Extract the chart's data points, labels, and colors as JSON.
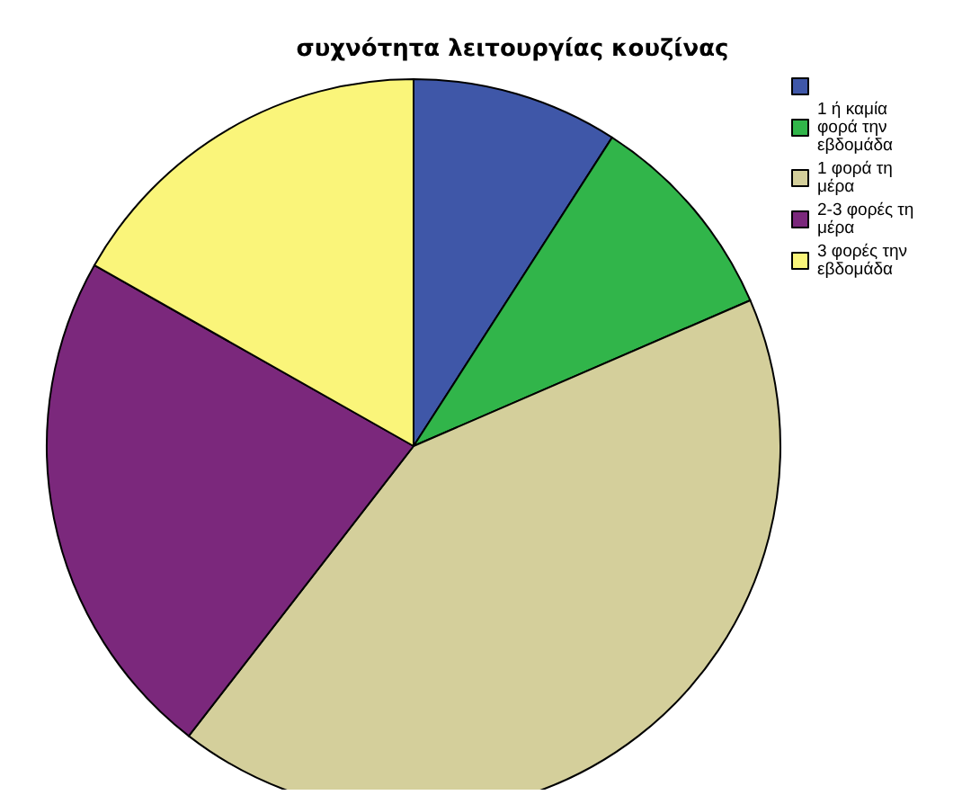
{
  "chart_data": {
    "type": "pie",
    "title": "συχνότητα λειτουργίας κουζίνας",
    "categories": [
      null,
      "1 ή καμία φορά την εβδομάδα",
      "1 φορά τη μέρα",
      "2-3 φορές τη μέρα",
      "3 φορές την εβδομάδα"
    ],
    "values": [
      9.1,
      9.4,
      42.0,
      22.7,
      16.8
    ],
    "colors": [
      "#3f57a8",
      "#31b54a",
      "#d4cf9b",
      "#7b287c",
      "#faf57a"
    ],
    "legend": "top right"
  }
}
